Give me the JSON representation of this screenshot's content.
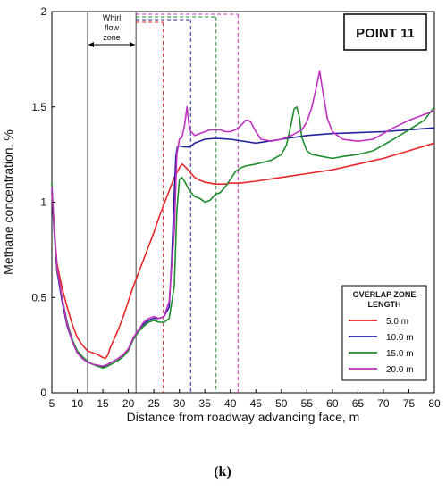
{
  "chart_data": {
    "type": "line",
    "title": "POINT 11",
    "xlabel": "Distance from roadway advancing face, m",
    "ylabel": "Methane concentration, %",
    "xlim": [
      5,
      80
    ],
    "ylim": [
      0,
      2
    ],
    "xticks": [
      5,
      10,
      15,
      20,
      25,
      30,
      35,
      40,
      45,
      50,
      55,
      60,
      65,
      70,
      75,
      80
    ],
    "yticks": [
      0,
      0.5,
      1,
      1.5,
      2
    ],
    "ytick_labels": [
      "0",
      "0.5",
      "1",
      "1.5",
      "2"
    ],
    "grid": false,
    "legend": {
      "title_line1": "OVERLAP ZONE",
      "title_line2": "LENGTH",
      "placement": "bottom-right"
    },
    "annotations": {
      "whirl_line1": "Whirl",
      "whirl_line2": "flow",
      "whirl_line3": "zone",
      "whirl_x": [
        12,
        21.5
      ]
    },
    "caption": "(k)",
    "series": [
      {
        "name": "5.0 m",
        "color": "#e8262a",
        "marker_x": 26.8,
        "x": [
          5,
          5.5,
          6,
          7,
          8,
          9,
          10,
          11,
          12,
          13,
          14,
          15,
          15.5,
          16,
          16.5,
          17,
          18,
          19,
          20,
          21,
          22,
          23,
          24,
          25,
          26,
          27,
          28,
          29,
          30,
          30.5,
          31,
          32,
          33,
          34,
          35,
          36,
          37,
          38,
          39,
          40,
          42,
          45,
          50,
          55,
          60,
          65,
          70,
          75,
          80
        ],
        "y": [
          1.05,
          0.85,
          0.68,
          0.55,
          0.45,
          0.36,
          0.29,
          0.25,
          0.22,
          0.21,
          0.2,
          0.185,
          0.18,
          0.2,
          0.24,
          0.27,
          0.33,
          0.4,
          0.48,
          0.56,
          0.63,
          0.7,
          0.77,
          0.84,
          0.92,
          0.99,
          1.06,
          1.13,
          1.18,
          1.2,
          1.19,
          1.16,
          1.13,
          1.115,
          1.105,
          1.1,
          1.095,
          1.095,
          1.095,
          1.1,
          1.1,
          1.11,
          1.13,
          1.15,
          1.17,
          1.2,
          1.23,
          1.27,
          1.31
        ]
      },
      {
        "name": "10.0 m",
        "color": "#22229a",
        "marker_x": 32.2,
        "x": [
          5,
          5.5,
          6,
          7,
          8,
          9,
          10,
          11,
          12,
          13,
          14,
          15,
          16,
          17,
          18,
          19,
          20,
          21,
          22,
          23,
          24,
          25,
          26,
          27,
          28,
          28.5,
          29,
          29.3,
          29.6,
          30,
          31,
          32,
          33,
          35,
          37,
          40,
          45,
          50,
          55,
          60,
          65,
          70,
          75,
          80
        ],
        "y": [
          1.06,
          0.82,
          0.64,
          0.48,
          0.35,
          0.27,
          0.21,
          0.18,
          0.16,
          0.15,
          0.14,
          0.135,
          0.15,
          0.165,
          0.18,
          0.2,
          0.23,
          0.29,
          0.33,
          0.36,
          0.38,
          0.39,
          0.39,
          0.4,
          0.45,
          0.7,
          1.05,
          1.24,
          1.29,
          1.295,
          1.29,
          1.29,
          1.31,
          1.33,
          1.335,
          1.33,
          1.31,
          1.33,
          1.35,
          1.36,
          1.365,
          1.37,
          1.38,
          1.39
        ]
      },
      {
        "name": "15.0 m",
        "color": "#1e8c2e",
        "marker_x": 37.2,
        "x": [
          5,
          5.5,
          6,
          7,
          8,
          9,
          10,
          11,
          12,
          13,
          14,
          15,
          16,
          17,
          18,
          19,
          20,
          21,
          22,
          23,
          24,
          25,
          26,
          27,
          28,
          29,
          29.5,
          30,
          30.5,
          31,
          32,
          33,
          34,
          35,
          36,
          37,
          38,
          39,
          40,
          41,
          42,
          43,
          45,
          48,
          50,
          51,
          52,
          52.5,
          53,
          53.5,
          54,
          55,
          56,
          58,
          60,
          62,
          65,
          68,
          70,
          72,
          75,
          78,
          80
        ],
        "y": [
          1.1,
          0.83,
          0.65,
          0.5,
          0.37,
          0.28,
          0.22,
          0.19,
          0.165,
          0.15,
          0.14,
          0.13,
          0.14,
          0.155,
          0.17,
          0.19,
          0.22,
          0.28,
          0.32,
          0.35,
          0.37,
          0.38,
          0.37,
          0.37,
          0.39,
          0.56,
          0.95,
          1.12,
          1.13,
          1.11,
          1.06,
          1.03,
          1.02,
          1.0,
          1.01,
          1.04,
          1.05,
          1.08,
          1.12,
          1.16,
          1.18,
          1.19,
          1.2,
          1.22,
          1.25,
          1.3,
          1.42,
          1.49,
          1.5,
          1.45,
          1.34,
          1.27,
          1.25,
          1.24,
          1.23,
          1.24,
          1.25,
          1.27,
          1.3,
          1.33,
          1.38,
          1.43,
          1.5
        ]
      },
      {
        "name": "20.0 m",
        "color": "#c030c0",
        "marker_x": 41.5,
        "x": [
          5,
          5.5,
          6,
          7,
          8,
          9,
          10,
          11,
          12,
          13,
          14,
          15,
          16,
          17,
          18,
          19,
          20,
          21,
          22,
          23,
          24,
          25,
          26,
          27,
          28,
          29,
          29.5,
          30,
          30.5,
          31,
          31.5,
          32,
          33,
          34,
          35,
          36,
          37,
          38,
          39,
          40,
          41,
          42,
          43,
          43.5,
          44,
          45,
          46,
          48,
          50,
          52,
          54,
          55,
          56,
          57,
          57.5,
          58,
          59,
          60,
          62,
          65,
          68,
          70,
          72,
          75,
          78,
          80
        ],
        "y": [
          1.08,
          0.84,
          0.66,
          0.5,
          0.36,
          0.27,
          0.21,
          0.18,
          0.16,
          0.15,
          0.145,
          0.14,
          0.15,
          0.165,
          0.18,
          0.2,
          0.23,
          0.29,
          0.33,
          0.37,
          0.39,
          0.4,
          0.39,
          0.4,
          0.48,
          0.85,
          1.25,
          1.33,
          1.34,
          1.4,
          1.5,
          1.38,
          1.35,
          1.36,
          1.37,
          1.38,
          1.38,
          1.38,
          1.37,
          1.37,
          1.38,
          1.4,
          1.43,
          1.43,
          1.42,
          1.37,
          1.33,
          1.32,
          1.33,
          1.35,
          1.38,
          1.42,
          1.5,
          1.62,
          1.69,
          1.6,
          1.44,
          1.37,
          1.33,
          1.32,
          1.33,
          1.36,
          1.39,
          1.43,
          1.46,
          1.48
        ]
      }
    ]
  }
}
